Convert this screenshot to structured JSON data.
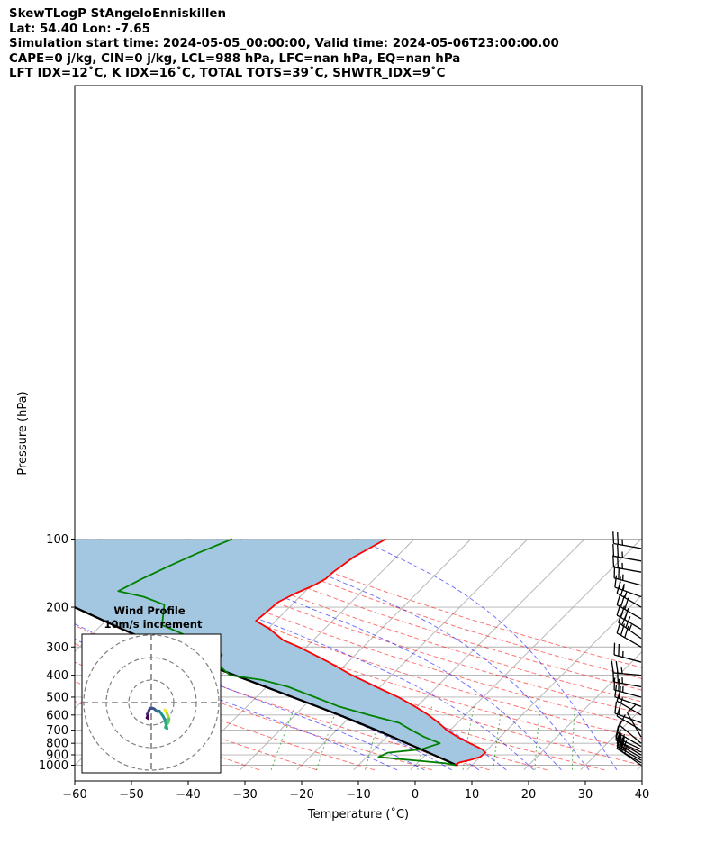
{
  "header": {
    "line1": "SkewTLogP StAngeloEnniskillen",
    "line2": "Lat: 54.40   Lon: -7.65",
    "line3": "Simulation start time: 2024-05-05_00:00:00, Valid time: 2024-05-06T23:00:00.00",
    "line4": "CAPE=0 j/kg, CIN=0 j/kg, LCL=988 hPa, LFC=nan hPa, EQ=nan hPa",
    "line5": "LFT IDX=12$^\\circ$C, K IDX=16$^\\circ$C, TOTAL TOTS=39$^\\circ$C, SHWTR_IDX=9$^\\circ$C"
  },
  "header_display": {
    "line5": "LFT IDX=12˚C, K IDX=16˚C, TOTAL TOTS=39˚C, SHWTR_IDX=9˚C"
  },
  "chart_data": {
    "type": "line",
    "subtype": "skew-t log-p",
    "xlabel": "Temperature (˚C)",
    "ylabel": "Pressure (hPa)",
    "xlim": [
      -60,
      40
    ],
    "ylim": [
      1050,
      100
    ],
    "y_scale": "log",
    "skew": "isotherms slanted 45°",
    "x_ticks": [
      "−60",
      "−50",
      "−40",
      "−30",
      "−20",
      "−10",
      "0",
      "10",
      "20",
      "30",
      "40"
    ],
    "y_ticks": [
      "100",
      "200",
      "300",
      "400",
      "500",
      "600",
      "700",
      "800",
      "900",
      "1000"
    ],
    "grid": true,
    "temperature": {
      "color": "#ff0000",
      "points": [
        {
          "p": 1000,
          "t": 7.6
        },
        {
          "p": 990,
          "t": 7.0
        },
        {
          "p": 970,
          "t": 7.4
        },
        {
          "p": 950,
          "t": 8.7
        },
        {
          "p": 920,
          "t": 10.0
        },
        {
          "p": 880,
          "t": 10.2
        },
        {
          "p": 850,
          "t": 9.0
        },
        {
          "p": 800,
          "t": 5.8
        },
        {
          "p": 750,
          "t": 2.5
        },
        {
          "p": 700,
          "t": -0.6
        },
        {
          "p": 650,
          "t": -3.3
        },
        {
          "p": 600,
          "t": -6.5
        },
        {
          "p": 550,
          "t": -10.4
        },
        {
          "p": 500,
          "t": -15.0
        },
        {
          "p": 450,
          "t": -20.7
        },
        {
          "p": 400,
          "t": -27.0
        },
        {
          "p": 350,
          "t": -33.4
        },
        {
          "p": 300,
          "t": -41.3
        },
        {
          "p": 280,
          "t": -45.3
        },
        {
          "p": 250,
          "t": -49.6
        },
        {
          "p": 230,
          "t": -53.5
        },
        {
          "p": 210,
          "t": -53.2
        },
        {
          "p": 190,
          "t": -52.9
        },
        {
          "p": 175,
          "t": -51.5
        },
        {
          "p": 160,
          "t": -49.5
        },
        {
          "p": 150,
          "t": -48.6
        },
        {
          "p": 140,
          "t": -48.5
        },
        {
          "p": 130,
          "t": -48.0
        },
        {
          "p": 120,
          "t": -47.5
        },
        {
          "p": 100,
          "t": -45.0
        }
      ]
    },
    "dewpoint": {
      "color": "#008000",
      "points": [
        {
          "p": 1000,
          "t": 7.1
        },
        {
          "p": 980,
          "t": 4.9
        },
        {
          "p": 960,
          "t": 0.9
        },
        {
          "p": 940,
          "t": -3.6
        },
        {
          "p": 920,
          "t": -7.9
        },
        {
          "p": 880,
          "t": -7.0
        },
        {
          "p": 850,
          "t": -1.7
        },
        {
          "p": 800,
          "t": 0.5
        },
        {
          "p": 750,
          "t": -3.4
        },
        {
          "p": 700,
          "t": -6.8
        },
        {
          "p": 650,
          "t": -10.3
        },
        {
          "p": 600,
          "t": -17.0
        },
        {
          "p": 550,
          "t": -23.8
        },
        {
          "p": 500,
          "t": -29.7
        },
        {
          "p": 450,
          "t": -36.2
        },
        {
          "p": 420,
          "t": -42.0
        },
        {
          "p": 400,
          "t": -48.5
        },
        {
          "p": 350,
          "t": -53.4
        },
        {
          "p": 325,
          "t": -53.5
        },
        {
          "p": 300,
          "t": -57.0
        },
        {
          "p": 270,
          "t": -62.5
        },
        {
          "p": 240,
          "t": -69.3
        },
        {
          "p": 215,
          "t": -71.0
        },
        {
          "p": 195,
          "t": -72.5
        },
        {
          "p": 180,
          "t": -77.5
        },
        {
          "p": 170,
          "t": -83.0
        },
        {
          "p": 150,
          "t": -81.0
        },
        {
          "p": 130,
          "t": -78.2
        },
        {
          "p": 115,
          "t": -75.6
        },
        {
          "p": 100,
          "t": -72.1
        }
      ]
    },
    "parcel": {
      "color": "#000000",
      "points": [
        {
          "p": 1000,
          "t": 7.3
        },
        {
          "p": 950,
          "t": 4.5
        },
        {
          "p": 900,
          "t": 1.4
        },
        {
          "p": 850,
          "t": -1.8
        },
        {
          "p": 800,
          "t": -5.3
        },
        {
          "p": 750,
          "t": -9.0
        },
        {
          "p": 700,
          "t": -13.0
        },
        {
          "p": 650,
          "t": -17.4
        },
        {
          "p": 600,
          "t": -22.2
        },
        {
          "p": 550,
          "t": -27.6
        },
        {
          "p": 500,
          "t": -33.6
        },
        {
          "p": 450,
          "t": -40.2
        },
        {
          "p": 400,
          "t": -47.7
        },
        {
          "p": 350,
          "t": -55.9
        },
        {
          "p": 300,
          "t": -65.1
        },
        {
          "p": 250,
          "t": -75.6
        },
        {
          "p": 200,
          "t": -87.9
        },
        {
          "p": 150,
          "t": -102.7
        },
        {
          "p": 125,
          "t": -111.5
        },
        {
          "p": 100,
          "t": -121.7
        }
      ]
    },
    "cin_shading": {
      "between": [
        "parcel",
        "temperature"
      ],
      "color": "#a3c7e1"
    },
    "dry_adiabats_C": [
      -30,
      -20,
      -10,
      0,
      10,
      20,
      30,
      40,
      50,
      60,
      70,
      80,
      90,
      100,
      110,
      120
    ],
    "moist_adiabats_C": [
      -5,
      0,
      5,
      10,
      15,
      20,
      25,
      30,
      35
    ],
    "mixing_ratios_gkg": [
      0.5,
      1,
      2,
      4,
      7,
      10,
      16,
      24
    ],
    "isotherms_C": [
      -180,
      -170,
      -160,
      -150,
      -140,
      -130,
      -120,
      -110,
      -100,
      -90,
      -80,
      -70,
      -60,
      -50,
      -40,
      -30,
      -20,
      -10,
      0,
      10,
      20,
      30,
      40
    ],
    "wind_barbs": [
      {
        "p": 1000,
        "kt": 20,
        "dir": 305
      },
      {
        "p": 975,
        "kt": 25,
        "dir": 300
      },
      {
        "p": 950,
        "kt": 25,
        "dir": 300
      },
      {
        "p": 925,
        "kt": 20,
        "dir": 300
      },
      {
        "p": 900,
        "kt": 15,
        "dir": 300
      },
      {
        "p": 875,
        "kt": 15,
        "dir": 295
      },
      {
        "p": 850,
        "kt": 15,
        "dir": 295
      },
      {
        "p": 825,
        "kt": 10,
        "dir": 300
      },
      {
        "p": 800,
        "kt": 10,
        "dir": 310
      },
      {
        "p": 750,
        "kt": 10,
        "dir": 330
      },
      {
        "p": 700,
        "kt": 10,
        "dir": 300
      },
      {
        "p": 650,
        "kt": 15,
        "dir": 290
      },
      {
        "p": 600,
        "kt": 15,
        "dir": 300
      },
      {
        "p": 550,
        "kt": 20,
        "dir": 290
      },
      {
        "p": 500,
        "kt": 25,
        "dir": 285
      },
      {
        "p": 450,
        "kt": 25,
        "dir": 280
      },
      {
        "p": 400,
        "kt": 25,
        "dir": 275
      },
      {
        "p": 350,
        "kt": 25,
        "dir": 285
      },
      {
        "p": 300,
        "kt": 30,
        "dir": 300
      },
      {
        "p": 275,
        "kt": 35,
        "dir": 305
      },
      {
        "p": 250,
        "kt": 30,
        "dir": 300
      },
      {
        "p": 225,
        "kt": 30,
        "dir": 300
      },
      {
        "p": 200,
        "kt": 25,
        "dir": 300
      },
      {
        "p": 180,
        "kt": 25,
        "dir": 290
      },
      {
        "p": 160,
        "kt": 25,
        "dir": 285
      },
      {
        "p": 140,
        "kt": 25,
        "dir": 280
      },
      {
        "p": 125,
        "kt": 25,
        "dir": 280
      },
      {
        "p": 110,
        "kt": 25,
        "dir": 280
      }
    ],
    "hodograph": {
      "title": "Wind Profile",
      "subtitle": "10m/s increment",
      "ring_increment_ms": 10,
      "rings": 3,
      "colormap": "viridis",
      "points": [
        {
          "u": 6.0,
          "v": -3.2
        },
        {
          "u": 6.8,
          "v": -4.5
        },
        {
          "u": 7.4,
          "v": -5.8
        },
        {
          "u": 7.9,
          "v": -7.2
        },
        {
          "u": 7.6,
          "v": -8.8
        },
        {
          "u": 6.9,
          "v": -9.6
        },
        {
          "u": 6.5,
          "v": -10.3
        },
        {
          "u": 6.3,
          "v": -11.0
        },
        {
          "u": 7.0,
          "v": -11.5
        },
        {
          "u": 6.0,
          "v": -7.5
        },
        {
          "u": 5.2,
          "v": -6.0
        },
        {
          "u": 4.5,
          "v": -5.0
        },
        {
          "u": 3.6,
          "v": -3.8
        },
        {
          "u": 2.8,
          "v": -4.0
        },
        {
          "u": 2.1,
          "v": -3.5
        },
        {
          "u": 1.3,
          "v": -2.8
        },
        {
          "u": 0.5,
          "v": -2.5
        },
        {
          "u": -0.6,
          "v": -2.6
        },
        {
          "u": -1.0,
          "v": -3.4
        },
        {
          "u": -1.3,
          "v": -4.3
        },
        {
          "u": -1.8,
          "v": -5.2
        },
        {
          "u": -1.5,
          "v": -6.0
        },
        {
          "u": -1.9,
          "v": -6.7
        },
        {
          "u": -1.4,
          "v": -7.1
        }
      ]
    }
  }
}
